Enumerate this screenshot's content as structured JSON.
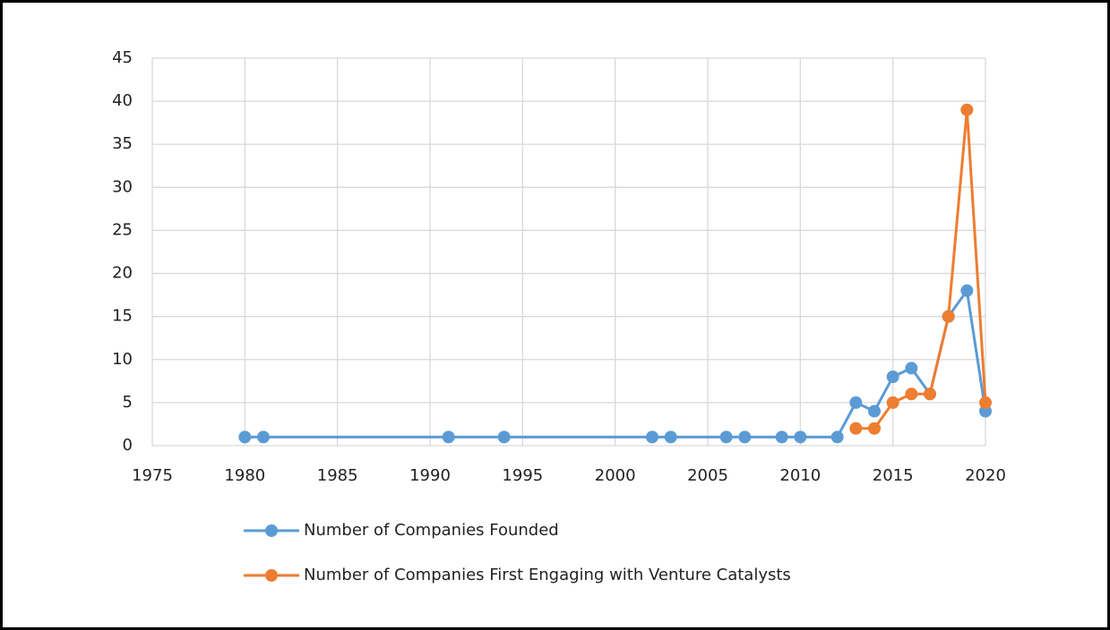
{
  "chart_data": {
    "type": "line",
    "series": [
      {
        "name": "Number of Companies Founded",
        "color": "#5b9bd5",
        "x": [
          1980,
          1981,
          1991,
          1994,
          2002,
          2003,
          2006,
          2007,
          2009,
          2010,
          2012,
          2013,
          2014,
          2015,
          2016,
          2017,
          2018,
          2019,
          2020
        ],
        "values": [
          1,
          1,
          1,
          1,
          1,
          1,
          1,
          1,
          1,
          1,
          1,
          5,
          4,
          8,
          9,
          6,
          15,
          18,
          4
        ]
      },
      {
        "name": "Number of Companies First Engaging with Venture Catalysts",
        "color": "#ed7d31",
        "x": [
          2013,
          2014,
          2015,
          2016,
          2017,
          2018,
          2019,
          2020
        ],
        "values": [
          2,
          2,
          5,
          6,
          6,
          15,
          39,
          5
        ]
      }
    ],
    "xlim": [
      1975,
      2020
    ],
    "xticks": [
      1975,
      1980,
      1985,
      1990,
      1995,
      2000,
      2005,
      2010,
      2015,
      2020
    ],
    "ylim": [
      0,
      45
    ],
    "yticks": [
      0,
      5,
      10,
      15,
      20,
      25,
      30,
      35,
      40,
      45
    ],
    "grid": true,
    "legend": "bottom"
  }
}
